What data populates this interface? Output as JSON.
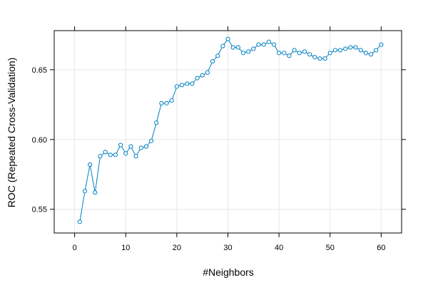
{
  "chart_data": {
    "type": "line",
    "xlabel": "#Neighbors",
    "ylabel": "ROC (Repeated Cross-Validation)",
    "xlim": [
      -4,
      64
    ],
    "ylim": [
      0.533,
      0.678
    ],
    "x_ticks": [
      0,
      10,
      20,
      30,
      40,
      50,
      60
    ],
    "x_tick_labels": [
      "0",
      "10",
      "20",
      "30",
      "40",
      "50",
      "60"
    ],
    "y_ticks": [
      0.55,
      0.6,
      0.65
    ],
    "y_tick_labels": [
      "0.55",
      "0.60",
      "0.65"
    ],
    "grid": true,
    "legend": "none",
    "colors": {
      "series": "#0080C0",
      "grid": "#E6E6E6",
      "frame": "#000000"
    },
    "series": [
      {
        "x": [
          1,
          2,
          3,
          4,
          5,
          6,
          7,
          8,
          9,
          10,
          11,
          12,
          13,
          14,
          15,
          16,
          17,
          18,
          19,
          20,
          21,
          22,
          23,
          24,
          25,
          26,
          27,
          28,
          29,
          30,
          31,
          32,
          33,
          34,
          35,
          36,
          37,
          38,
          39,
          40,
          41,
          42,
          43,
          44,
          45,
          46,
          47,
          48,
          49,
          50,
          51,
          52,
          53,
          54,
          55,
          56,
          57,
          58,
          59,
          60
        ],
        "values": [
          0.541,
          0.563,
          0.582,
          0.562,
          0.588,
          0.591,
          0.589,
          0.589,
          0.596,
          0.59,
          0.595,
          0.588,
          0.594,
          0.595,
          0.599,
          0.612,
          0.626,
          0.626,
          0.628,
          0.638,
          0.639,
          0.64,
          0.64,
          0.644,
          0.646,
          0.648,
          0.656,
          0.66,
          0.667,
          0.672,
          0.666,
          0.666,
          0.662,
          0.663,
          0.665,
          0.668,
          0.668,
          0.67,
          0.668,
          0.662,
          0.662,
          0.66,
          0.664,
          0.662,
          0.663,
          0.661,
          0.659,
          0.658,
          0.658,
          0.662,
          0.664,
          0.664,
          0.665,
          0.666,
          0.666,
          0.664,
          0.662,
          0.661,
          0.664,
          0.668
        ]
      }
    ]
  }
}
